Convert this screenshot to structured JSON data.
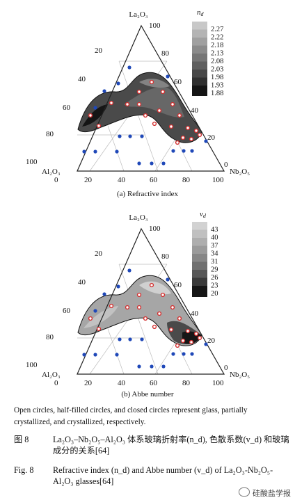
{
  "panels": [
    {
      "subcaption": "(a) Refractive index",
      "vertex_top": "La₂O₃",
      "vertex_left": "Al₂O₃",
      "vertex_right": "Nb₂O₅",
      "ticks_left": [
        "100",
        "80",
        "60",
        "40",
        "20",
        "0"
      ],
      "ticks_right": [
        "0",
        "20",
        "40",
        "60",
        "80",
        "100"
      ],
      "ticks_bottom": [
        "0",
        "20",
        "40",
        "60",
        "80",
        "100"
      ],
      "colorbar_title": "n_d",
      "colorbar_labels": [
        "2.27",
        "2.22",
        "2.18",
        "2.13",
        "2.08",
        "2.03",
        "1.98",
        "1.93",
        "1.88"
      ],
      "colorbar_colors": [
        "#c8c8c8",
        "#b4b4b4",
        "#a0a0a0",
        "#8b8b8b",
        "#767676",
        "#5f5f5f",
        "#484848",
        "#303030",
        "#151515"
      ]
    },
    {
      "subcaption": "(b) Abbe number",
      "vertex_top": "La₂O₃",
      "vertex_left": "Al₂O₃",
      "vertex_right": "Nb₂O₅",
      "ticks_left": [
        "100",
        "80",
        "60",
        "40",
        "20",
        "0"
      ],
      "ticks_right": [
        "0",
        "20",
        "40",
        "60",
        "80",
        "100"
      ],
      "ticks_bottom": [
        "0",
        "20",
        "40",
        "60",
        "80",
        "100"
      ],
      "colorbar_title": "v_d",
      "colorbar_labels": [
        "43",
        "40",
        "37",
        "34",
        "31",
        "29",
        "26",
        "23",
        "20"
      ],
      "colorbar_colors": [
        "#d2d2d2",
        "#c0c0c0",
        "#aeaeae",
        "#9b9b9b",
        "#878787",
        "#707070",
        "#575757",
        "#3a3a3a",
        "#161616"
      ]
    }
  ],
  "note": "Open circles, half-filled circles, and closed circles represent glass, partially crystallized, and crystallized, respectively.",
  "caption_cn_label": "图 8",
  "caption_cn_text": "La₂O₃–Nb₂O₅–Al₂O₃ 体系玻璃折射率(n_d), 色散系数(v_d) 和玻璃成分的关系[64]",
  "caption_en_label": "Fig. 8",
  "caption_en_text": "Refractive index (n_d) and Abbe number (v_d) of La₂O₃-Nb₂O₅-Al₂O₃ glasses[64]",
  "watermark": "硅酸盐学报",
  "colors": {
    "closed_circle": "#1f48b8",
    "open_circle_stroke": "#d23030",
    "grid": "#bdbdbd",
    "frame": "#222222"
  }
}
